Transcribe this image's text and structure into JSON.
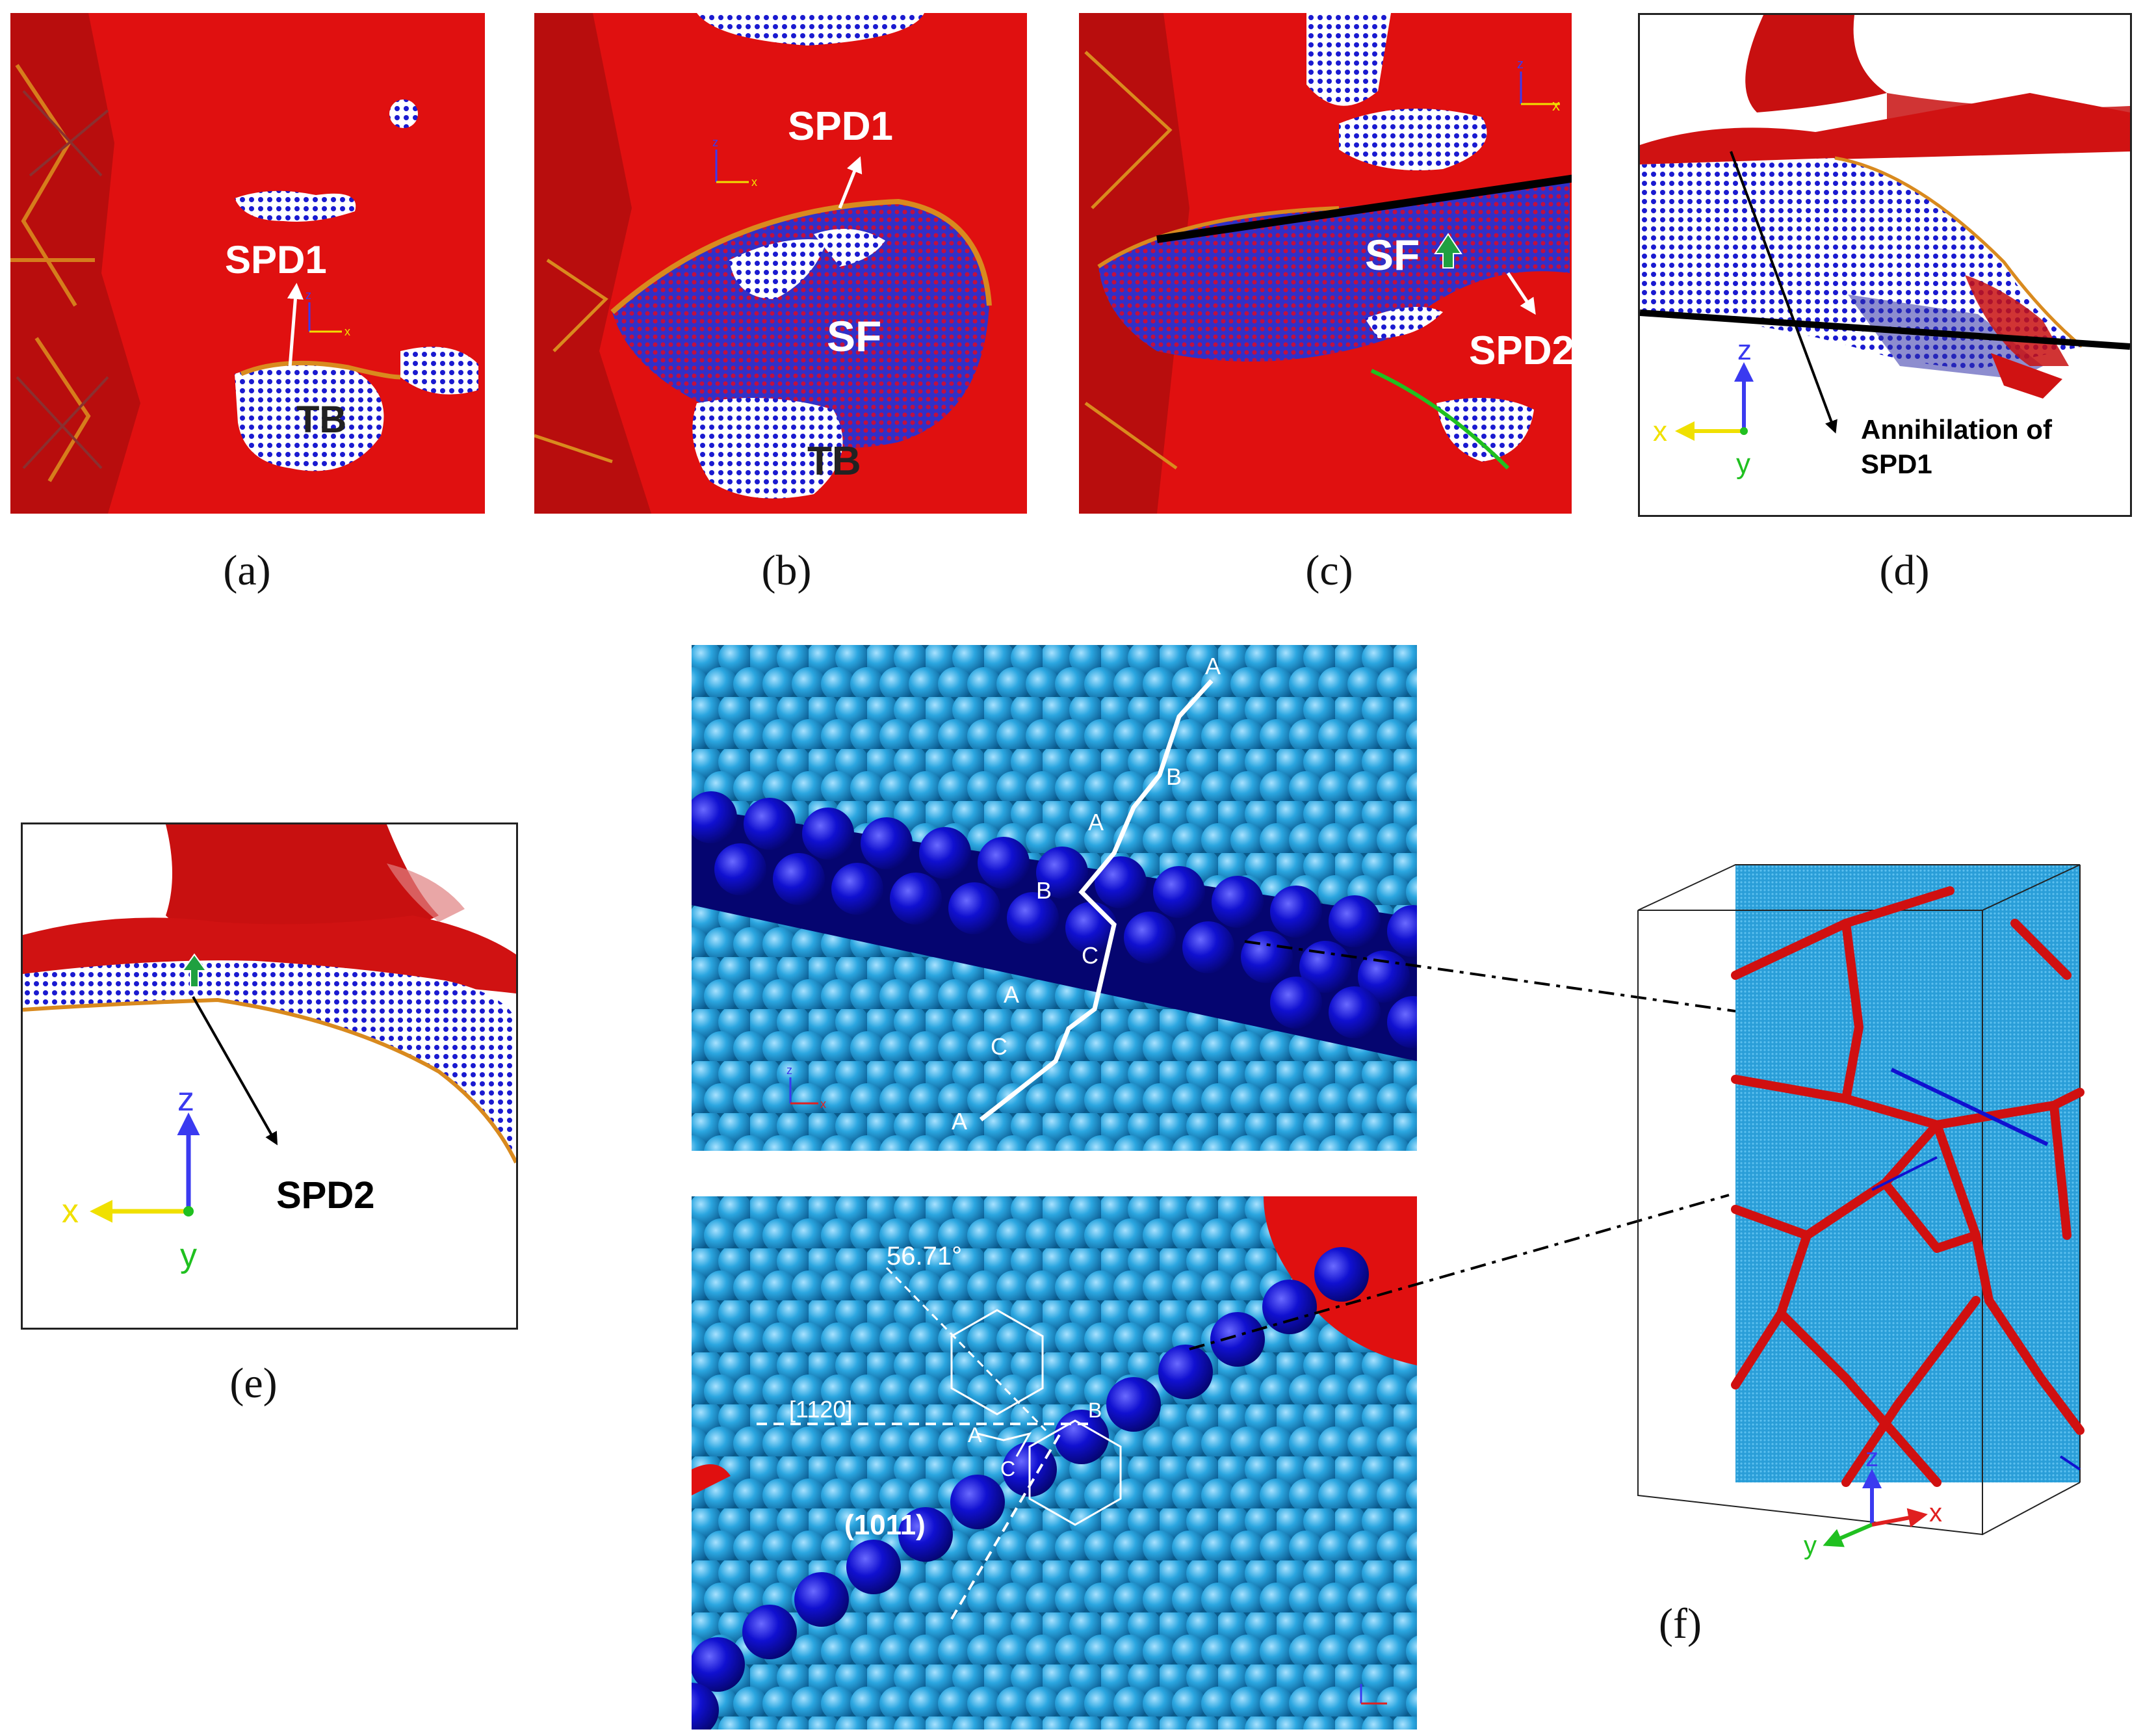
{
  "captions": {
    "a": "(a)",
    "b": "(b)",
    "c": "(c)",
    "d": "(d)",
    "e": "(e)",
    "f": "(f)"
  },
  "panel_a": {
    "spd": "SPD1",
    "tb": "TB",
    "axis_z": "z",
    "axis_x": "x"
  },
  "panel_b": {
    "spd": "SPD1",
    "sf": "SF",
    "tb": "TB",
    "axis_z": "z",
    "axis_x": "x"
  },
  "panel_c": {
    "sf": "SF",
    "spd": "SPD2",
    "axis_z": "z",
    "axis_x": "x"
  },
  "panel_d": {
    "annotation_line1": "Annihilation of",
    "annotation_line2": "SPD1",
    "axis_z": "z",
    "axis_x": "x",
    "axis_y": "y"
  },
  "panel_e": {
    "spd": "SPD2",
    "axis_z": "z",
    "axis_x": "x",
    "axis_y": "y"
  },
  "panel_f_top": {
    "stacking_labels": [
      "A",
      "B",
      "A",
      "B",
      "C",
      "A",
      "C",
      "A"
    ],
    "axis_z": "z",
    "axis_x": "x"
  },
  "panel_f_bottom": {
    "angle": "56.71°",
    "direction": "[1120]",
    "plane": "(1011)",
    "site_a": "A",
    "site_b": "B",
    "site_c": "C"
  },
  "panel_f_box": {
    "axis_z": "z",
    "axis_y": "y",
    "axis_x": "x"
  },
  "colors": {
    "defect_red": "#e01010",
    "atom_light": "#2ba6e0",
    "atom_dark": "#1010d0",
    "partial_orange": "#d98a1e",
    "axis_z": "#3a3af0",
    "axis_x": "#f0e000",
    "axis_y": "#20c020"
  }
}
